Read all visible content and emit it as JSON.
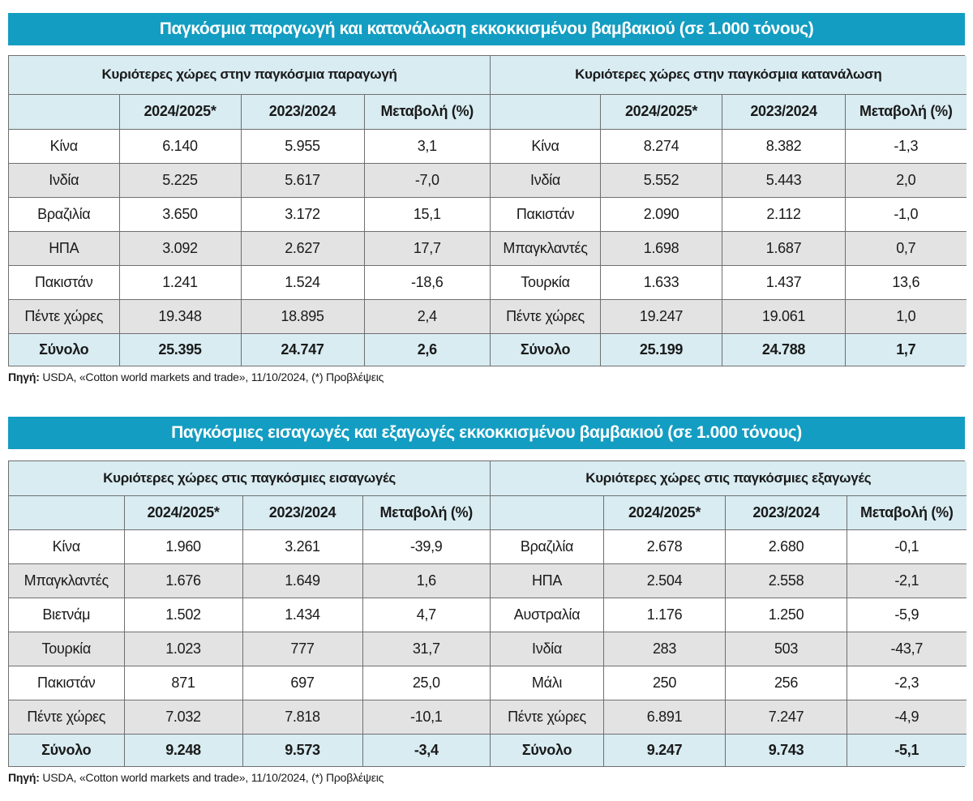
{
  "section1": {
    "title": "Παγκόσμια παραγωγή και κατανάλωση εκκοκκισμένου βαμβακιού (σε 1.000 τόνους)",
    "left": {
      "group_title": "Κυριότερες χώρες στην παγκόσμια παραγωγή",
      "columns": [
        "2024/2025*",
        "2023/2024",
        "Μεταβολή (%)"
      ],
      "rows": [
        {
          "country": "Κίνα",
          "c1": "6.140",
          "c2": "5.955",
          "c3": "3,1"
        },
        {
          "country": "Ινδία",
          "c1": "5.225",
          "c2": "5.617",
          "c3": "-7,0"
        },
        {
          "country": "Βραζιλία",
          "c1": "3.650",
          "c2": "3.172",
          "c3": "15,1"
        },
        {
          "country": "ΗΠΑ",
          "c1": "3.092",
          "c2": "2.627",
          "c3": "17,7"
        },
        {
          "country": "Πακιστάν",
          "c1": "1.241",
          "c2": "1.524",
          "c3": "-18,6"
        },
        {
          "country": "Πέντε χώρες",
          "c1": "19.348",
          "c2": "18.895",
          "c3": "2,4"
        }
      ],
      "total": {
        "country": "Σύνολο",
        "c1": "25.395",
        "c2": "24.747",
        "c3": "2,6"
      }
    },
    "right": {
      "group_title": "Κυριότερες χώρες στην παγκόσμια κατανάλωση",
      "columns": [
        "2024/2025*",
        "2023/2024",
        "Μεταβολή (%)"
      ],
      "rows": [
        {
          "country": "Κίνα",
          "c1": "8.274",
          "c2": "8.382",
          "c3": "-1,3"
        },
        {
          "country": "Ινδία",
          "c1": "5.552",
          "c2": "5.443",
          "c3": "2,0"
        },
        {
          "country": "Πακιστάν",
          "c1": "2.090",
          "c2": "2.112",
          "c3": "-1,0"
        },
        {
          "country": "Μπαγκλαντές",
          "c1": "1.698",
          "c2": "1.687",
          "c3": "0,7"
        },
        {
          "country": "Τουρκία",
          "c1": "1.633",
          "c2": "1.437",
          "c3": "13,6"
        },
        {
          "country": "Πέντε χώρες",
          "c1": "19.247",
          "c2": "19.061",
          "c3": "1,0"
        }
      ],
      "total": {
        "country": "Σύνολο",
        "c1": "25.199",
        "c2": "24.788",
        "c3": "1,7"
      }
    },
    "source_label": "Πηγή:",
    "source_text": " USDA, «Cotton world markets and trade», 11/10/2024, (*) Προβλέψεις"
  },
  "section2": {
    "title": "Παγκόσμιες εισαγωγές και εξαγωγές εκκοκκισμένου βαμβακιού (σε 1.000 τόνους)",
    "left": {
      "group_title": "Κυριότερες χώρες στις παγκόσμιες εισαγωγές",
      "columns": [
        "2024/2025*",
        "2023/2024",
        "Μεταβολή (%)"
      ],
      "rows": [
        {
          "country": "Κίνα",
          "c1": "1.960",
          "c2": "3.261",
          "c3": "-39,9"
        },
        {
          "country": "Μπαγκλαντές",
          "c1": "1.676",
          "c2": "1.649",
          "c3": "1,6"
        },
        {
          "country": "Βιετνάμ",
          "c1": "1.502",
          "c2": "1.434",
          "c3": "4,7"
        },
        {
          "country": "Τουρκία",
          "c1": "1.023",
          "c2": "777",
          "c3": "31,7"
        },
        {
          "country": "Πακιστάν",
          "c1": "871",
          "c2": "697",
          "c3": "25,0"
        },
        {
          "country": "Πέντε χώρες",
          "c1": "7.032",
          "c2": "7.818",
          "c3": "-10,1"
        }
      ],
      "total": {
        "country": "Σύνολο",
        "c1": "9.248",
        "c2": "9.573",
        "c3": "-3,4"
      }
    },
    "right": {
      "group_title": "Κυριότερες χώρες στις παγκόσμιες εξαγωγές",
      "columns": [
        "2024/2025*",
        "2023/2024",
        "Μεταβολή (%)"
      ],
      "rows": [
        {
          "country": "Βραζιλία",
          "c1": "2.678",
          "c2": "2.680",
          "c3": "-0,1"
        },
        {
          "country": "ΗΠΑ",
          "c1": "2.504",
          "c2": "2.558",
          "c3": "-2,1"
        },
        {
          "country": "Αυστραλία",
          "c1": "1.176",
          "c2": "1.250",
          "c3": "-5,9"
        },
        {
          "country": "Ινδία",
          "c1": "283",
          "c2": "503",
          "c3": "-43,7"
        },
        {
          "country": "Μάλι",
          "c1": "250",
          "c2": "256",
          "c3": "-2,3"
        },
        {
          "country": "Πέντε χώρες",
          "c1": "6.891",
          "c2": "7.247",
          "c3": "-4,9"
        }
      ],
      "total": {
        "country": "Σύνολο",
        "c1": "9.247",
        "c2": "9.743",
        "c3": "-5,1"
      }
    },
    "source_label": "Πηγή:",
    "source_text": " USDA, «Cotton world markets and trade», 11/10/2024, (*) Προβλέψεις"
  }
}
